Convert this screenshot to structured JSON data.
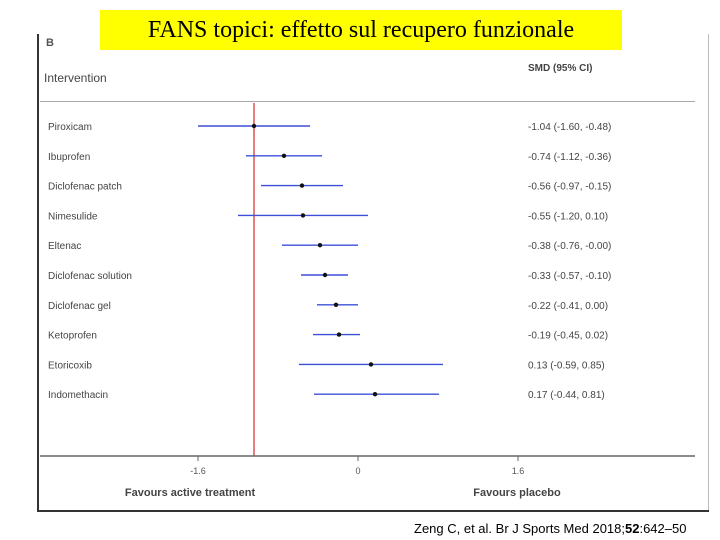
{
  "title": "FANS topici: effetto sul recupero funzionale",
  "panel_letter": "B",
  "header": {
    "left": "Intervention",
    "right": "SMD (95% CI)"
  },
  "citation": {
    "before": "Zeng C, et al. Br J Sports Med 2018;",
    "volume": "52",
    "after": ":642–50"
  },
  "colors": {
    "ci_line": "#3b4fd8",
    "reference_line": "#d62728",
    "point": "#111111",
    "banner": "#ffff00"
  },
  "chart_data": {
    "type": "forest",
    "title": "",
    "xlabel": "",
    "xlim": [
      -2.3,
      2.3
    ],
    "reference_value": -1.04,
    "x_ticks": [
      -1.6,
      0,
      1.6
    ],
    "x_tick_labels": [
      "-1.6",
      "0",
      "1.6"
    ],
    "axis_left_label": "Favours active treatment",
    "axis_right_label": "Favours placebo",
    "rows": [
      {
        "label": "Piroxicam",
        "smd": -1.04,
        "lower": -1.6,
        "upper": -0.48,
        "ci_text": "-1.04 (-1.60, -0.48)"
      },
      {
        "label": "Ibuprofen",
        "smd": -0.74,
        "lower": -1.12,
        "upper": -0.36,
        "ci_text": "-0.74 (-1.12, -0.36)"
      },
      {
        "label": "Diclofenac patch",
        "smd": -0.56,
        "lower": -0.97,
        "upper": -0.15,
        "ci_text": "-0.56 (-0.97, -0.15)"
      },
      {
        "label": "Nimesulide",
        "smd": -0.55,
        "lower": -1.2,
        "upper": 0.1,
        "ci_text": "-0.55 (-1.20, 0.10)"
      },
      {
        "label": "Eltenac",
        "smd": -0.38,
        "lower": -0.76,
        "upper": 0.0,
        "ci_text": "-0.38 (-0.76, -0.00)"
      },
      {
        "label": "Diclofenac solution",
        "smd": -0.33,
        "lower": -0.57,
        "upper": -0.1,
        "ci_text": "-0.33 (-0.57, -0.10)"
      },
      {
        "label": "Diclofenac gel",
        "smd": -0.22,
        "lower": -0.41,
        "upper": 0.0,
        "ci_text": "-0.22 (-0.41, 0.00)"
      },
      {
        "label": "Ketoprofen",
        "smd": -0.19,
        "lower": -0.45,
        "upper": 0.02,
        "ci_text": "-0.19 (-0.45, 0.02)"
      },
      {
        "label": "Etoricoxib",
        "smd": 0.13,
        "lower": -0.59,
        "upper": 0.85,
        "ci_text": "0.13 (-0.59, 0.85)"
      },
      {
        "label": "Indomethacin",
        "smd": 0.17,
        "lower": -0.44,
        "upper": 0.81,
        "ci_text": "0.17 (-0.44, 0.81)"
      }
    ]
  }
}
